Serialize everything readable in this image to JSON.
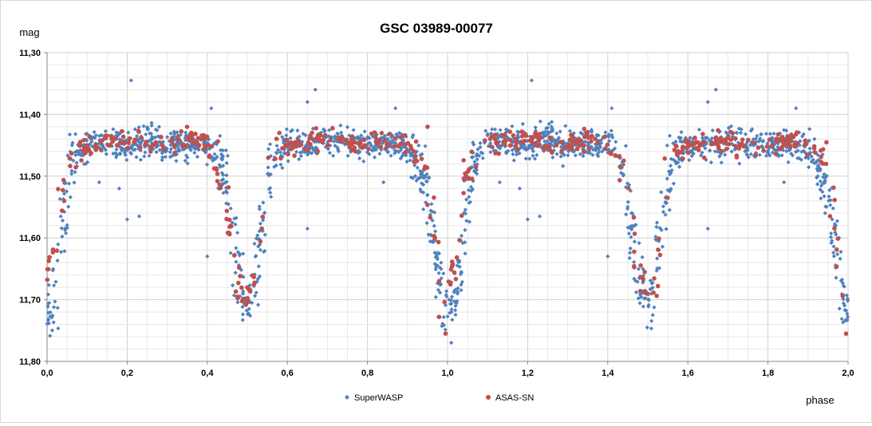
{
  "chart_data": {
    "type": "scatter",
    "title": "GSC 03989-00077",
    "ylabel": "mag",
    "xlabel": "phase",
    "xlim": [
      0,
      2
    ],
    "ylim": [
      11.3,
      11.8
    ],
    "y_inverted": true,
    "x_ticks": [
      "0,0",
      "0,2",
      "0,4",
      "0,6",
      "0,8",
      "1,0",
      "1,2",
      "1,4",
      "1,6",
      "1,8",
      "2,0"
    ],
    "y_ticks": [
      "11,30",
      "11,40",
      "11,50",
      "11,60",
      "11,70",
      "11,80"
    ],
    "grid": true,
    "legend_position": "bottom",
    "series": [
      {
        "name": "SuperWASP",
        "color": "#4f81bd",
        "marker": "diamond",
        "phase": [
          0.0,
          0.01,
          0.02,
          0.03,
          0.04,
          0.05,
          0.06,
          0.08,
          0.1,
          0.15,
          0.2,
          0.25,
          0.3,
          0.35,
          0.38,
          0.4,
          0.42,
          0.44,
          0.45,
          0.46,
          0.47,
          0.48,
          0.49,
          0.5,
          0.51,
          0.52,
          0.53,
          0.54,
          0.55,
          0.56,
          0.58,
          0.6,
          0.65,
          0.7,
          0.75,
          0.8,
          0.85,
          0.88,
          0.9,
          0.92,
          0.94,
          0.95,
          0.96,
          0.97,
          0.98,
          0.99,
          1.0
        ],
        "mag": [
          11.73,
          11.71,
          11.68,
          11.64,
          11.58,
          11.53,
          11.49,
          11.46,
          11.45,
          11.44,
          11.45,
          11.44,
          11.45,
          11.45,
          11.45,
          11.45,
          11.46,
          11.49,
          11.53,
          11.58,
          11.62,
          11.66,
          11.69,
          11.71,
          11.69,
          11.65,
          11.61,
          11.57,
          11.52,
          11.48,
          11.46,
          11.45,
          11.45,
          11.44,
          11.45,
          11.45,
          11.45,
          11.45,
          11.46,
          11.48,
          11.51,
          11.54,
          11.58,
          11.62,
          11.66,
          11.7,
          11.72
        ],
        "spread": 0.022,
        "outliers": [
          [
            0.21,
            11.345
          ],
          [
            0.67,
            11.36
          ],
          [
            0.65,
            11.38
          ],
          [
            0.41,
            11.39
          ],
          [
            0.2,
            11.57
          ],
          [
            0.23,
            11.565
          ],
          [
            0.4,
            11.63
          ],
          [
            0.65,
            11.585
          ],
          [
            0.87,
            11.39
          ],
          [
            0.13,
            11.51
          ],
          [
            0.18,
            11.52
          ],
          [
            0.84,
            11.51
          ],
          [
            1.21,
            11.345
          ],
          [
            1.67,
            11.36
          ],
          [
            1.65,
            11.38
          ],
          [
            1.41,
            11.39
          ],
          [
            1.2,
            11.57
          ],
          [
            1.23,
            11.565
          ],
          [
            1.4,
            11.63
          ],
          [
            1.65,
            11.585
          ],
          [
            1.87,
            11.39
          ],
          [
            1.13,
            11.51
          ],
          [
            1.18,
            11.52
          ],
          [
            1.84,
            11.51
          ]
        ]
      },
      {
        "name": "ASAS-SN",
        "color": "#c0504d",
        "marker": "circle",
        "phase": [
          0.01,
          0.02,
          0.04,
          0.06,
          0.08,
          0.1,
          0.15,
          0.2,
          0.25,
          0.3,
          0.35,
          0.4,
          0.43,
          0.45,
          0.48,
          0.5,
          0.53,
          0.55,
          0.58,
          0.62,
          0.7,
          0.75,
          0.8,
          0.85,
          0.9,
          0.94,
          0.96,
          0.98,
          0.99
        ],
        "mag": [
          11.66,
          11.62,
          11.52,
          11.48,
          11.46,
          11.45,
          11.44,
          11.44,
          11.45,
          11.45,
          11.44,
          11.45,
          11.49,
          11.55,
          11.67,
          11.69,
          11.66,
          11.48,
          11.46,
          11.45,
          11.44,
          11.45,
          11.45,
          11.44,
          11.45,
          11.47,
          11.56,
          11.65,
          11.7
        ],
        "spread": 0.015,
        "outliers": [
          [
            0.995,
            11.755
          ],
          [
            1.995,
            11.755
          ],
          [
            0.36,
            11.43
          ],
          [
            0.58,
            11.43
          ],
          [
            0.76,
            11.44
          ],
          [
            0.95,
            11.42
          ]
        ]
      }
    ]
  }
}
